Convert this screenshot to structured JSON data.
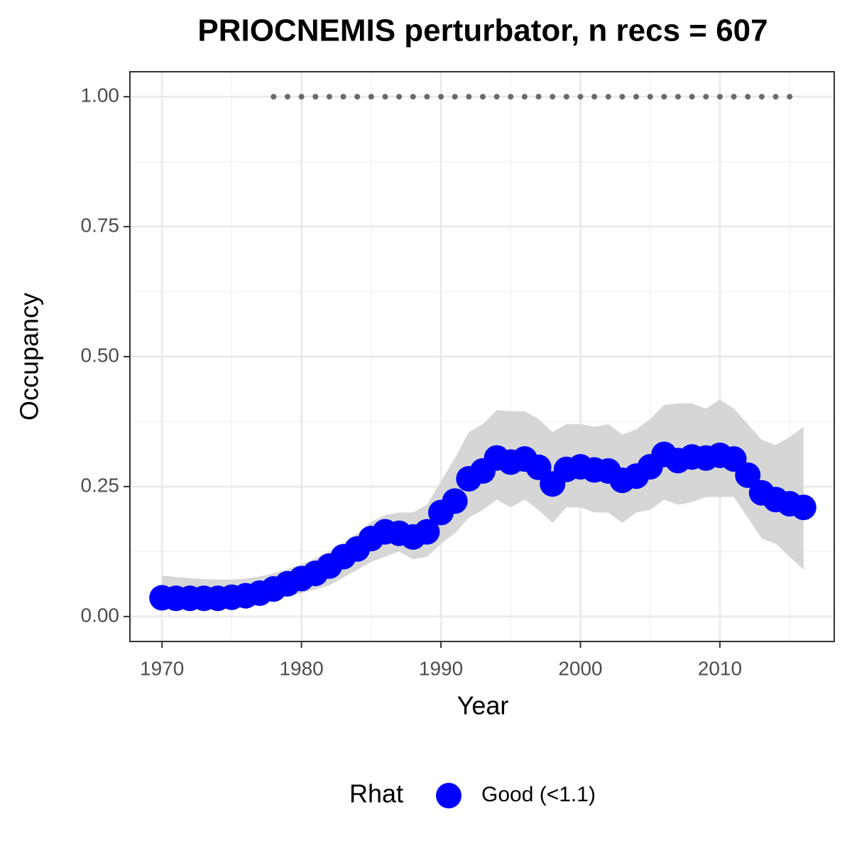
{
  "chart_data": {
    "type": "line",
    "title": "PRIOCNEMIS perturbator, n recs = 607",
    "x_label": "Year",
    "y_label": "Occupancy",
    "legend_title": "Rhat",
    "x": [
      1970,
      1971,
      1972,
      1973,
      1974,
      1975,
      1976,
      1977,
      1978,
      1979,
      1980,
      1981,
      1982,
      1983,
      1984,
      1985,
      1986,
      1987,
      1988,
      1989,
      1990,
      1991,
      1992,
      1993,
      1994,
      1995,
      1996,
      1997,
      1998,
      1999,
      2000,
      2001,
      2002,
      2003,
      2004,
      2005,
      2006,
      2007,
      2008,
      2009,
      2010,
      2011,
      2012,
      2013,
      2014,
      2015,
      2016
    ],
    "series": [
      {
        "name": "Good (<1.1)",
        "color": "#0000ff",
        "values": [
          0.036,
          0.035,
          0.035,
          0.035,
          0.035,
          0.037,
          0.04,
          0.045,
          0.053,
          0.063,
          0.073,
          0.083,
          0.097,
          0.115,
          0.13,
          0.15,
          0.163,
          0.16,
          0.153,
          0.163,
          0.2,
          0.222,
          0.265,
          0.28,
          0.305,
          0.297,
          0.303,
          0.287,
          0.255,
          0.283,
          0.288,
          0.282,
          0.28,
          0.262,
          0.27,
          0.288,
          0.312,
          0.3,
          0.307,
          0.305,
          0.31,
          0.303,
          0.272,
          0.238,
          0.225,
          0.217,
          0.21
        ],
        "upper": [
          0.079,
          0.076,
          0.074,
          0.072,
          0.071,
          0.071,
          0.073,
          0.077,
          0.083,
          0.091,
          0.1,
          0.112,
          0.125,
          0.142,
          0.16,
          0.182,
          0.195,
          0.2,
          0.2,
          0.215,
          0.26,
          0.305,
          0.355,
          0.37,
          0.397,
          0.395,
          0.395,
          0.38,
          0.355,
          0.37,
          0.37,
          0.365,
          0.37,
          0.35,
          0.36,
          0.38,
          0.407,
          0.41,
          0.41,
          0.4,
          0.417,
          0.4,
          0.37,
          0.34,
          0.33,
          0.345,
          0.365
        ],
        "lower": [
          0.018,
          0.018,
          0.019,
          0.019,
          0.019,
          0.02,
          0.022,
          0.025,
          0.031,
          0.038,
          0.045,
          0.052,
          0.06,
          0.075,
          0.09,
          0.105,
          0.115,
          0.125,
          0.11,
          0.115,
          0.14,
          0.16,
          0.19,
          0.205,
          0.225,
          0.21,
          0.225,
          0.205,
          0.18,
          0.21,
          0.21,
          0.2,
          0.2,
          0.18,
          0.2,
          0.205,
          0.225,
          0.215,
          0.22,
          0.23,
          0.23,
          0.23,
          0.19,
          0.15,
          0.14,
          0.115,
          0.09
        ]
      }
    ],
    "ribbon_color": "#d6d6d6",
    "records": {
      "color": "#6b6b6b",
      "x": [
        1978,
        1979,
        1980,
        1981,
        1982,
        1983,
        1984,
        1985,
        1986,
        1987,
        1988,
        1989,
        1990,
        1991,
        1992,
        1993,
        1994,
        1995,
        1996,
        1997,
        1998,
        1999,
        2000,
        2001,
        2002,
        2003,
        2004,
        2005,
        2006,
        2007,
        2008,
        2009,
        2010,
        2011,
        2012,
        2013,
        2014,
        2015
      ],
      "values": [
        1,
        1,
        1,
        1,
        1,
        1,
        1,
        1,
        1,
        1,
        1,
        1,
        1,
        1,
        1,
        1,
        1,
        1,
        1,
        1,
        1,
        1,
        1,
        1,
        1,
        1,
        1,
        1,
        1,
        1,
        1,
        1,
        1,
        1,
        1,
        1,
        1,
        1
      ]
    },
    "xlim": [
      1967.7,
      2018.2
    ],
    "xticks": [
      1970,
      1980,
      1990,
      2000,
      2010
    ],
    "xminorticks": [
      1975,
      1985,
      1995,
      2005,
      2015
    ],
    "ylim": [
      -0.048,
      1.048
    ],
    "yticks": [
      {
        "value": 0,
        "label": "0.00"
      },
      {
        "value": 0.25,
        "label": "0.25"
      },
      {
        "value": 0.5,
        "label": "0.50"
      },
      {
        "value": 0.75,
        "label": "0.75"
      },
      {
        "value": 1,
        "label": "1.00"
      }
    ],
    "yminorticks": [
      0.125,
      0.375,
      0.625,
      0.875
    ],
    "grid": true
  }
}
